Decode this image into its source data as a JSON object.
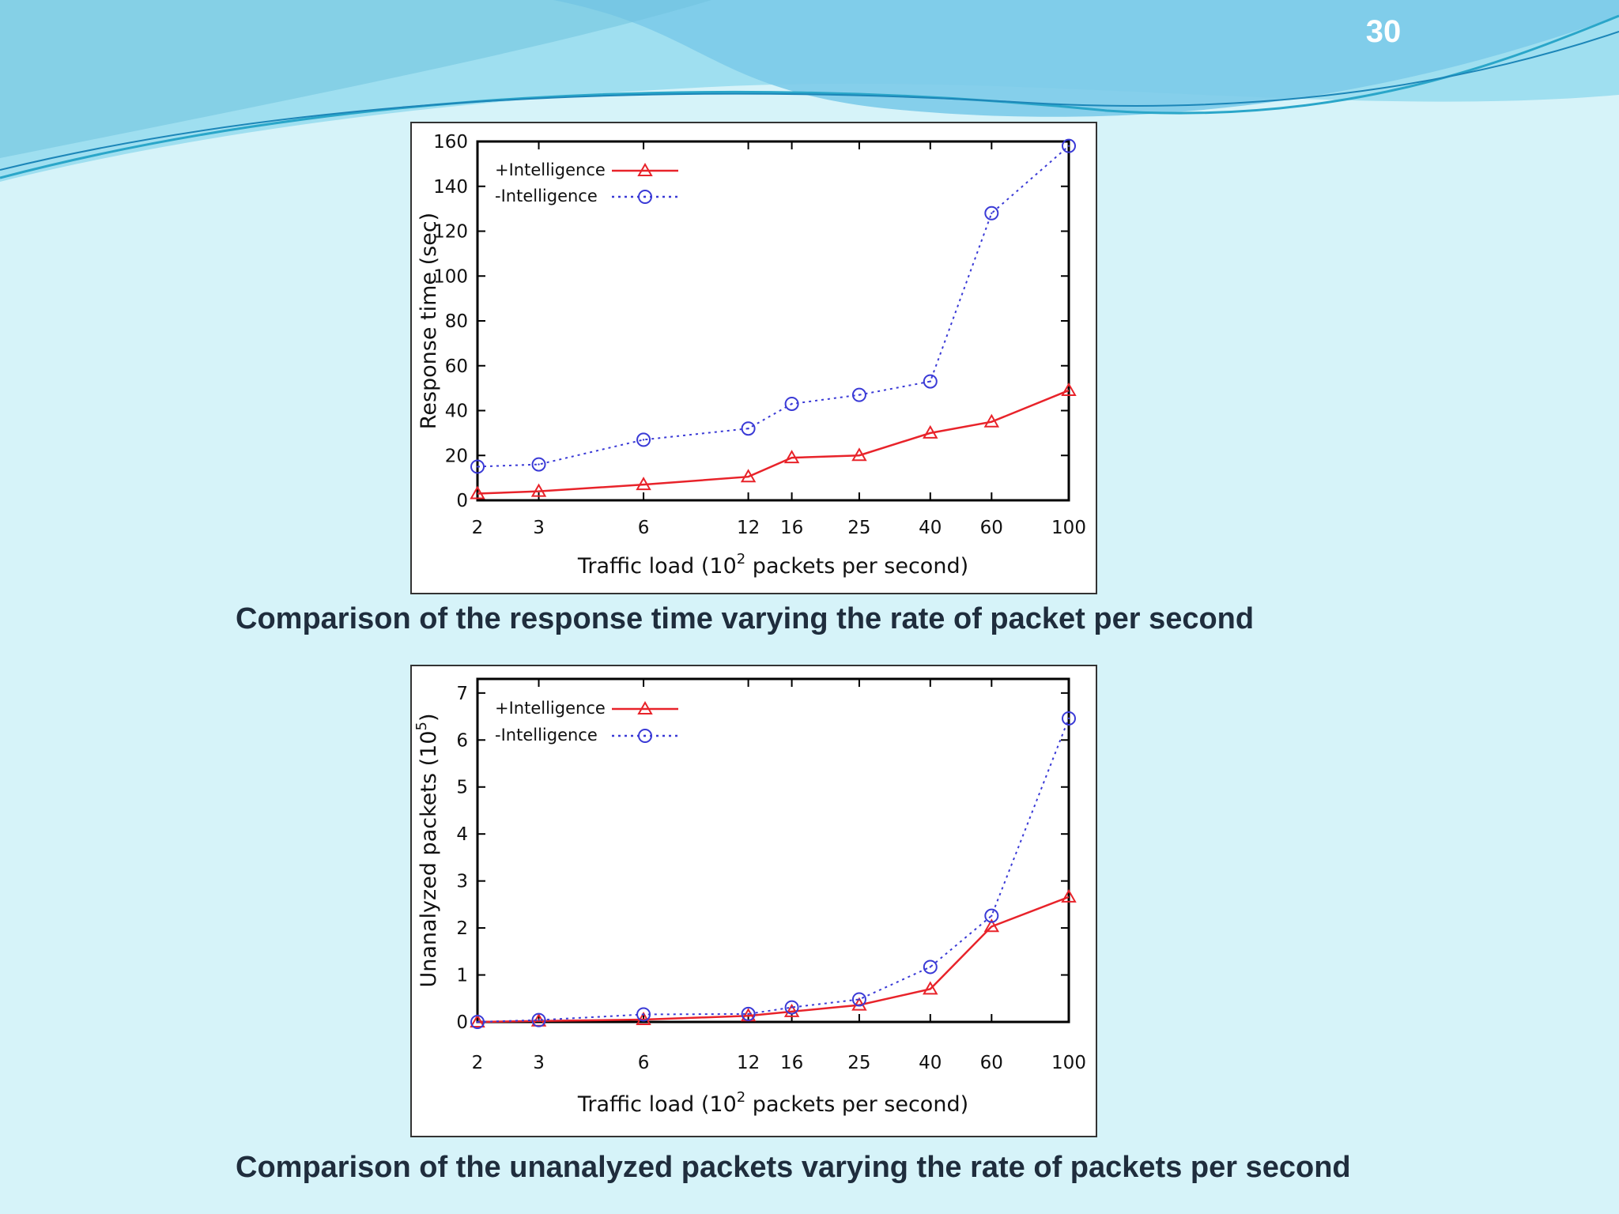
{
  "slide": {
    "page_number": "30"
  },
  "theme": {
    "background": "#d6f3f9",
    "wave_dark": "#6cc5e6",
    "wave_light": "#9fdff0",
    "series_plus": "#e8232a",
    "series_minus": "#3a3ad6"
  },
  "captions": [
    "Comparison of the response time varying the rate of packet per second",
    "Comparison of the unanalyzed packets varying the rate of packets per second"
  ],
  "chart_data": [
    {
      "type": "line",
      "x_scale": "log",
      "x": [
        2,
        3,
        6,
        12,
        16,
        25,
        40,
        60,
        100
      ],
      "x_tick_labels": [
        "2",
        "3",
        "6",
        "12",
        "16",
        "25",
        "40",
        "60",
        "100"
      ],
      "y_ticks": [
        0,
        20,
        40,
        60,
        80,
        100,
        120,
        140,
        160
      ],
      "ylim": [
        0,
        160
      ],
      "xlabel": "Traffic load (10",
      "xlabel_sup": "2",
      "xlabel_end": " packets per second)",
      "ylabel": "Response time (sec)",
      "ylabel_sup": "",
      "ylabel_end": "",
      "legend_position": "top-left",
      "series": [
        {
          "name": "+Intelligence",
          "marker": "triangle",
          "style": "solid",
          "values": [
            3,
            4,
            7,
            10.5,
            19,
            20,
            30,
            35,
            49
          ]
        },
        {
          "name": "-Intelligence",
          "marker": "circle",
          "style": "dotted",
          "values": [
            15,
            16,
            27,
            32,
            43,
            47,
            53,
            128,
            158
          ]
        }
      ]
    },
    {
      "type": "line",
      "x_scale": "log",
      "x": [
        2,
        3,
        6,
        12,
        16,
        25,
        40,
        60,
        100
      ],
      "x_tick_labels": [
        "2",
        "3",
        "6",
        "12",
        "16",
        "25",
        "40",
        "60",
        "100"
      ],
      "y_ticks": [
        0,
        1,
        2,
        3,
        4,
        5,
        6,
        7
      ],
      "ylim": [
        0,
        7.3
      ],
      "xlabel": "Traffic load (10",
      "xlabel_sup": "2",
      "xlabel_end": " packets per second)",
      "ylabel": "Unanalyzed packets (10",
      "ylabel_sup": "5",
      "ylabel_end": ")",
      "legend_position": "top-left",
      "series": [
        {
          "name": "+Intelligence",
          "marker": "triangle",
          "style": "solid",
          "values": [
            0,
            0.02,
            0.05,
            0.13,
            0.22,
            0.36,
            0.7,
            2.03,
            2.66
          ]
        },
        {
          "name": "-Intelligence",
          "marker": "circle",
          "style": "dotted",
          "values": [
            0,
            0.04,
            0.16,
            0.17,
            0.31,
            0.48,
            1.17,
            2.26,
            6.46
          ]
        }
      ]
    }
  ]
}
